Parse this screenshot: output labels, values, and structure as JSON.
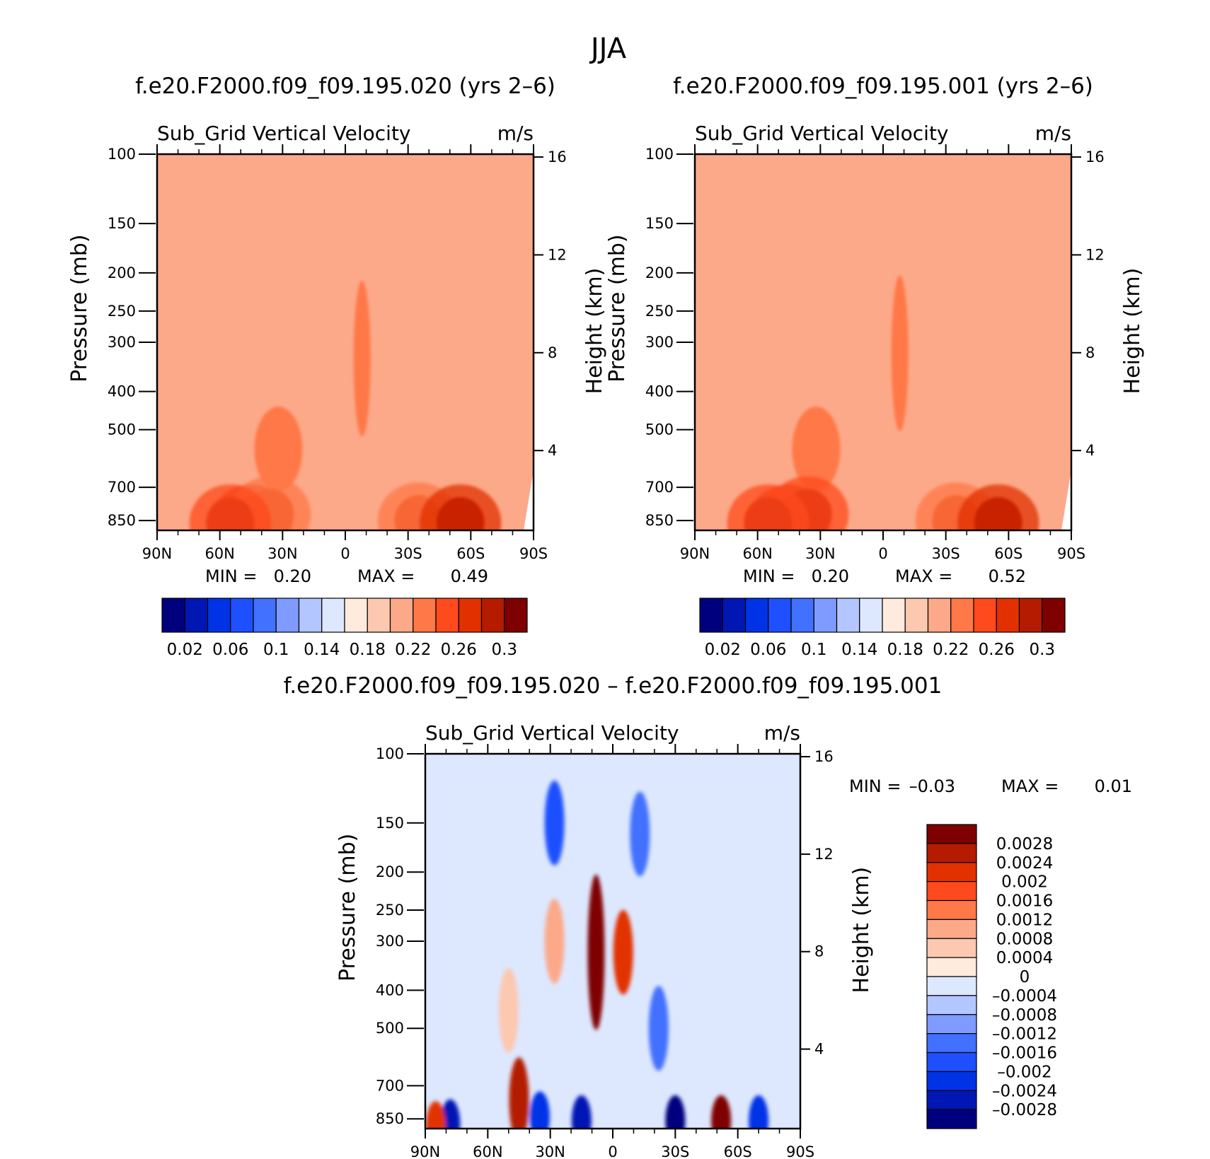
{
  "figure": {
    "title": "JJA"
  },
  "palettes": {
    "abs": [
      "#00007f",
      "#0017b4",
      "#0033e6",
      "#1e50ff",
      "#4270ff",
      "#7f9bff",
      "#b4c6ff",
      "#dde8ff",
      "#ffebdd",
      "#fcc8b0",
      "#fca98a",
      "#ff7847",
      "#ff4a1e",
      "#e23000",
      "#b41b00",
      "#7f0000"
    ],
    "diff": [
      "#00007f",
      "#0017b4",
      "#0033e6",
      "#1e50ff",
      "#4270ff",
      "#7f9bff",
      "#b4c6ff",
      "#dde8ff",
      "#ffebdd",
      "#fcc8b0",
      "#fca98a",
      "#ff7847",
      "#ff4a1e",
      "#e23000",
      "#b41b00",
      "#7f0000"
    ]
  },
  "chart_data": [
    {
      "type": "heatmap",
      "title": "f.e20.F2000.f09_f09.195.020 (yrs 2–6)",
      "subtitle_left": "Sub_Grid Vertical Velocity",
      "subtitle_right": "m/s",
      "ylabel": "Pressure (mb)",
      "ylabel_right": "Height (km)",
      "x_ticks": [
        "90N",
        "60N",
        "30N",
        "0",
        "30S",
        "60S",
        "90S"
      ],
      "x_range": [
        90,
        -90
      ],
      "y_ticks": [
        100,
        150,
        200,
        250,
        300,
        400,
        500,
        700,
        850
      ],
      "y_range": [
        100,
        900
      ],
      "y_scale": "log",
      "y_right_ticks": [
        4,
        8,
        12,
        16
      ],
      "min_label": "MIN =",
      "min_value": "0.20",
      "max_label": "MAX =",
      "max_value": "0.49",
      "colorbar_labels": [
        "0.02",
        "0.06",
        "0.1",
        "0.14",
        "0.18",
        "0.22",
        "0.26",
        "0.3"
      ],
      "background_level": 10,
      "features": [
        {
          "lat": -8,
          "p": 330,
          "level": 11,
          "note": "upper tropospheric maximum"
        },
        {
          "lat": 32,
          "p": 560,
          "level": 11
        },
        {
          "lat": 45,
          "p": 860,
          "level": 15
        },
        {
          "lat": 36,
          "p": 820,
          "level": 13
        },
        {
          "lat": 55,
          "p": 860,
          "level": 14
        },
        {
          "lat": -35,
          "p": 850,
          "level": 13
        },
        {
          "lat": -55,
          "p": 860,
          "level": 15
        }
      ]
    },
    {
      "type": "heatmap",
      "title": "f.e20.F2000.f09_f09.195.001 (yrs 2–6)",
      "subtitle_left": "Sub_Grid Vertical Velocity",
      "subtitle_right": "m/s",
      "ylabel": "Pressure (mb)",
      "ylabel_right": "Height (km)",
      "x_ticks": [
        "90N",
        "60N",
        "30N",
        "0",
        "30S",
        "60S",
        "90S"
      ],
      "x_range": [
        90,
        -90
      ],
      "y_ticks": [
        100,
        150,
        200,
        250,
        300,
        400,
        500,
        700,
        850
      ],
      "y_range": [
        100,
        900
      ],
      "y_scale": "log",
      "y_right_ticks": [
        4,
        8,
        12,
        16
      ],
      "min_label": "MIN =",
      "min_value": "0.20",
      "max_label": "MAX =",
      "max_value": "0.52",
      "colorbar_labels": [
        "0.02",
        "0.06",
        "0.1",
        "0.14",
        "0.18",
        "0.22",
        "0.26",
        "0.3"
      ],
      "background_level": 10,
      "features": [
        {
          "lat": -8,
          "p": 320,
          "level": 11,
          "note": "upper tropospheric maximum"
        },
        {
          "lat": 32,
          "p": 560,
          "level": 11
        },
        {
          "lat": 45,
          "p": 860,
          "level": 15
        },
        {
          "lat": 36,
          "p": 820,
          "level": 14
        },
        {
          "lat": 55,
          "p": 860,
          "level": 14
        },
        {
          "lat": -35,
          "p": 850,
          "level": 13
        },
        {
          "lat": -55,
          "p": 860,
          "level": 15
        }
      ]
    },
    {
      "type": "heatmap",
      "title": "f.e20.F2000.f09_f09.195.020 – f.e20.F2000.f09_f09.195.001",
      "subtitle_left": "Sub_Grid Vertical Velocity",
      "subtitle_right": "m/s",
      "ylabel": "Pressure (mb)",
      "ylabel_right": "Height (km)",
      "x_ticks": [
        "90N",
        "60N",
        "30N",
        "0",
        "30S",
        "60S",
        "90S"
      ],
      "x_range": [
        90,
        -90
      ],
      "y_ticks": [
        100,
        150,
        200,
        250,
        300,
        400,
        500,
        700,
        850
      ],
      "y_range": [
        100,
        900
      ],
      "y_scale": "log",
      "y_right_ticks": [
        4,
        8,
        12,
        16
      ],
      "min_label": "MIN =",
      "min_value": "–0.03",
      "max_label": "MAX =",
      "max_value": "0.01",
      "colorbar_labels": [
        "0.0028",
        "0.0024",
        "0.002",
        "0.0016",
        "0.0012",
        "0.0008",
        "0.0004",
        "0",
        "–0.0004",
        "–0.0008",
        "–0.0012",
        "–0.0016",
        "–0.002",
        "–0.0024",
        "–0.0028"
      ],
      "background_level": 7,
      "features": [
        {
          "lat": 8,
          "p": 320,
          "level": 15,
          "note": "tropical positive core"
        },
        {
          "lat": -5,
          "p": 320,
          "level": 13
        },
        {
          "lat": 28,
          "p": 300,
          "level": 10
        },
        {
          "lat": 50,
          "p": 450,
          "level": 9
        },
        {
          "lat": 45,
          "p": 760,
          "level": 14
        },
        {
          "lat": 28,
          "p": 150,
          "level": 3
        },
        {
          "lat": -13,
          "p": 160,
          "level": 4
        },
        {
          "lat": -22,
          "p": 500,
          "level": 4
        },
        {
          "lat": 78,
          "p": 880,
          "level": 1
        },
        {
          "lat": 35,
          "p": 840,
          "level": 2
        },
        {
          "lat": 15,
          "p": 860,
          "level": 1
        },
        {
          "lat": -30,
          "p": 860,
          "level": 0
        },
        {
          "lat": -52,
          "p": 860,
          "level": 15
        },
        {
          "lat": -70,
          "p": 860,
          "level": 2
        },
        {
          "lat": 85,
          "p": 890,
          "level": 13
        }
      ]
    }
  ]
}
